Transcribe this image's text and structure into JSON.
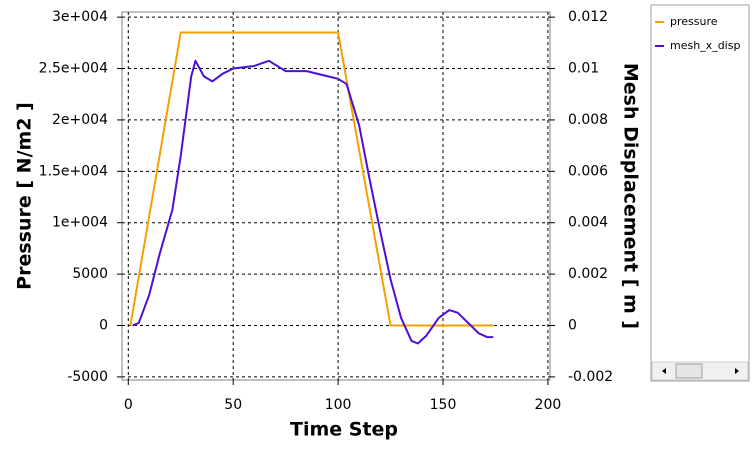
{
  "chart_data": {
    "type": "line",
    "xlabel": "Time Step",
    "ylabel": "Pressure [ N/m2 ]",
    "y2label": "Mesh Displacement [ m ]",
    "xlim": [
      -3,
      201
    ],
    "xticks": [
      0,
      50,
      100,
      150,
      200
    ],
    "ylim": [
      -5300,
      30500
    ],
    "yticks": [
      {
        "value": -5000,
        "label": "-5000"
      },
      0,
      5000,
      {
        "value": 10000,
        "label": "1e+004"
      },
      {
        "value": 15000,
        "label": "1.5e+004"
      },
      {
        "value": 20000,
        "label": "2e+004"
      },
      {
        "value": 25000,
        "label": "2.5e+004"
      },
      {
        "value": 30000,
        "label": "3e+004"
      }
    ],
    "y2lim": [
      -0.00212,
      0.0122
    ],
    "y2ticks": [
      -0.002,
      0,
      0.002,
      0.004,
      0.006,
      0.008,
      0.01,
      0.012
    ],
    "grid": true,
    "series": [
      {
        "name": "pressure",
        "color": "#f5a000",
        "x": [
          1,
          25,
          100,
          125,
          174
        ],
        "values": [
          0,
          28500,
          28500,
          0,
          0
        ]
      },
      {
        "name": "mesh_x_disp",
        "color": "#4b10d6",
        "axis": "y2",
        "x": [
          2,
          5,
          10,
          15,
          21,
          25,
          30,
          32,
          36,
          40,
          45,
          50,
          60,
          67,
          75,
          85,
          95,
          100,
          104,
          110,
          115,
          120,
          125,
          130,
          135,
          138,
          142,
          148,
          153,
          157,
          162,
          167,
          171,
          174
        ],
        "values": [
          0,
          0.0001,
          0.0012,
          0.0028,
          0.0045,
          0.0066,
          0.0097,
          0.0103,
          0.0097,
          0.0095,
          0.0098,
          0.01,
          0.0101,
          0.0103,
          0.0099,
          0.0099,
          0.0097,
          0.0096,
          0.0094,
          0.0078,
          0.0057,
          0.0037,
          0.0018,
          0.0003,
          -0.0006,
          -0.0007,
          -0.0004,
          0.0003,
          0.0006,
          0.0005,
          0.0001,
          -0.0003,
          -0.00045,
          -0.00045
        ]
      }
    ]
  }
}
